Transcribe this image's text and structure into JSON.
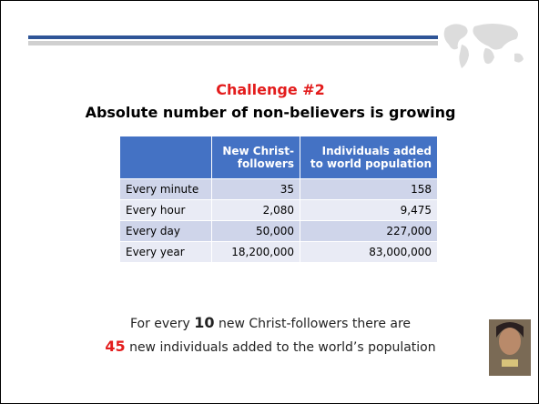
{
  "title": "Challenge #2",
  "subtitle": "Absolute number of non-believers is growing",
  "table": {
    "header": [
      "New Christ-followers",
      "Individuals added to world population"
    ],
    "rows": [
      [
        "Every minute",
        "35",
        "158"
      ],
      [
        "Every hour",
        "2,080",
        "9,475"
      ],
      [
        "Every day",
        "50,000",
        "227,000"
      ],
      [
        "Every year",
        "18,200,000",
        "83,000,000"
      ]
    ]
  },
  "footer": {
    "line1": [
      "For every ",
      "10",
      " new Christ-followers there are"
    ],
    "line2": [
      "45",
      " new individuals added to the world’s population"
    ]
  }
}
